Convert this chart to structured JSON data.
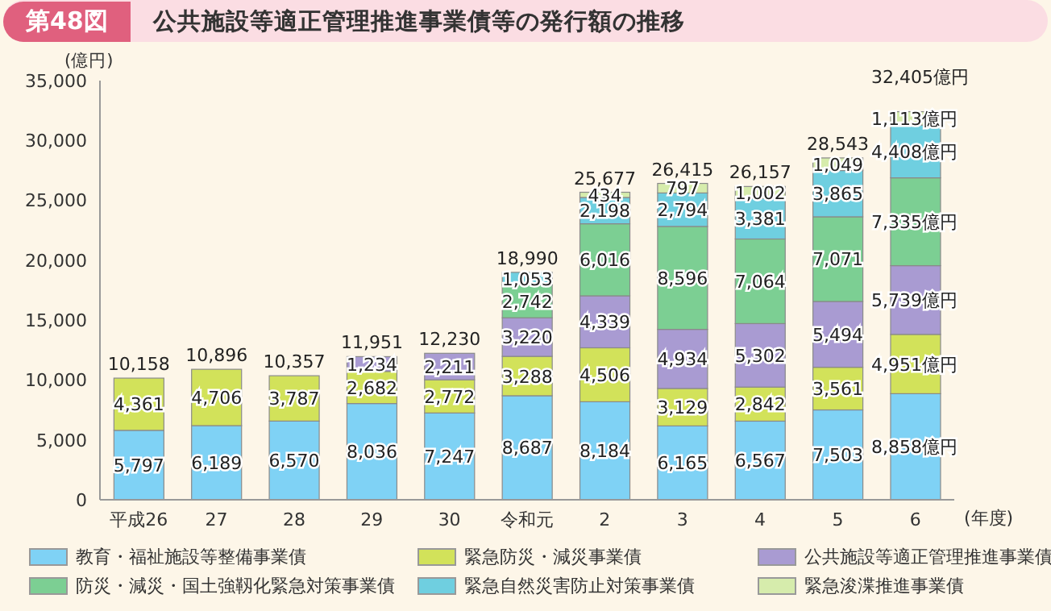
{
  "chart_data": {
    "type": "bar",
    "title": "公共施設等適正管理推進事業債等の発行額の推移",
    "annotations": [
      "第48図"
    ],
    "ylabel": "(億円)",
    "xlabel": "(年度)",
    "stacked": true,
    "categories": [
      "平成26",
      "27",
      "28",
      "29",
      "30",
      "令和元",
      "2",
      "3",
      "4",
      "5",
      "6"
    ],
    "ylim": [
      0,
      35000
    ],
    "yticks": [
      0,
      {
        "value": 5000,
        "label": "5,000"
      },
      {
        "value": 10000,
        "label": "10,000"
      },
      {
        "value": 15000,
        "label": "15,000"
      },
      {
        "value": 20000,
        "label": "20,000"
      },
      {
        "value": 25000,
        "label": "25,000"
      },
      {
        "value": 30000,
        "label": "30,000"
      },
      {
        "value": 35000,
        "label": "35,000"
      }
    ],
    "series": [
      {
        "name": "教育・福祉施設等整備事業債",
        "color": "#7fd2f5",
        "values": [
          5797,
          6189,
          6570,
          8036,
          7247,
          8687,
          8184,
          6165,
          6567,
          7503,
          8858
        ],
        "value_labels": [
          "5,797",
          "6,189",
          "6,570",
          "8,036",
          "7,247",
          "8,687",
          "8,184",
          "6,165",
          "6,567",
          "7,503",
          "8,858億円"
        ]
      },
      {
        "name": "緊急防災・減災事業債",
        "color": "#d2e25a",
        "values": [
          4361,
          4706,
          3787,
          2682,
          2772,
          3288,
          4506,
          3129,
          2842,
          3561,
          4951
        ],
        "value_labels": [
          "4,361",
          "4,706",
          "3,787",
          "2,682",
          "2,772",
          "3,288",
          "4,506",
          "3,129",
          "2,842",
          "3,561",
          "4,951億円"
        ]
      },
      {
        "name": "公共施設等適正管理推進事業債",
        "color": "#a99bd2",
        "values": [
          null,
          null,
          null,
          1234,
          2211,
          3220,
          4339,
          4934,
          5302,
          5494,
          5739
        ],
        "value_labels": [
          null,
          null,
          null,
          "1,234",
          "2,211",
          "3,220",
          "4,339",
          "4,934",
          "5,302",
          "5,494",
          "5,739億円"
        ]
      },
      {
        "name": "防災・減災・国土強靱化緊急対策事業債",
        "color": "#7ccf93",
        "values": [
          null,
          null,
          null,
          null,
          null,
          2742,
          6016,
          8596,
          7064,
          7071,
          7335
        ],
        "value_labels": [
          null,
          null,
          null,
          null,
          null,
          "2,742",
          "6,016",
          "8,596",
          "7,064",
          "7,071",
          "7,335億円"
        ]
      },
      {
        "name": "緊急自然災害防止対策事業債",
        "color": "#6fcfe0",
        "values": [
          null,
          null,
          null,
          null,
          null,
          1053,
          2198,
          2794,
          3381,
          3865,
          4408
        ],
        "value_labels": [
          null,
          null,
          null,
          null,
          null,
          "1,053",
          "2,198",
          "2,794",
          "3,381",
          "3,865",
          "4,408億円"
        ]
      },
      {
        "name": "緊急浚渫推進事業債",
        "color": "#d6ecac",
        "values": [
          null,
          null,
          null,
          null,
          null,
          null,
          434,
          797,
          1002,
          1049,
          1113
        ],
        "value_labels": [
          null,
          null,
          null,
          null,
          null,
          null,
          "434",
          "797",
          "1,002",
          "1,049",
          "1,113億円"
        ]
      }
    ],
    "totals": [
      "10,158",
      "10,896",
      "10,357",
      "11,951",
      "12,230",
      "18,990",
      "25,677",
      "26,415",
      "26,157",
      "28,543",
      "32,405億円"
    ],
    "legend": "bottom"
  }
}
